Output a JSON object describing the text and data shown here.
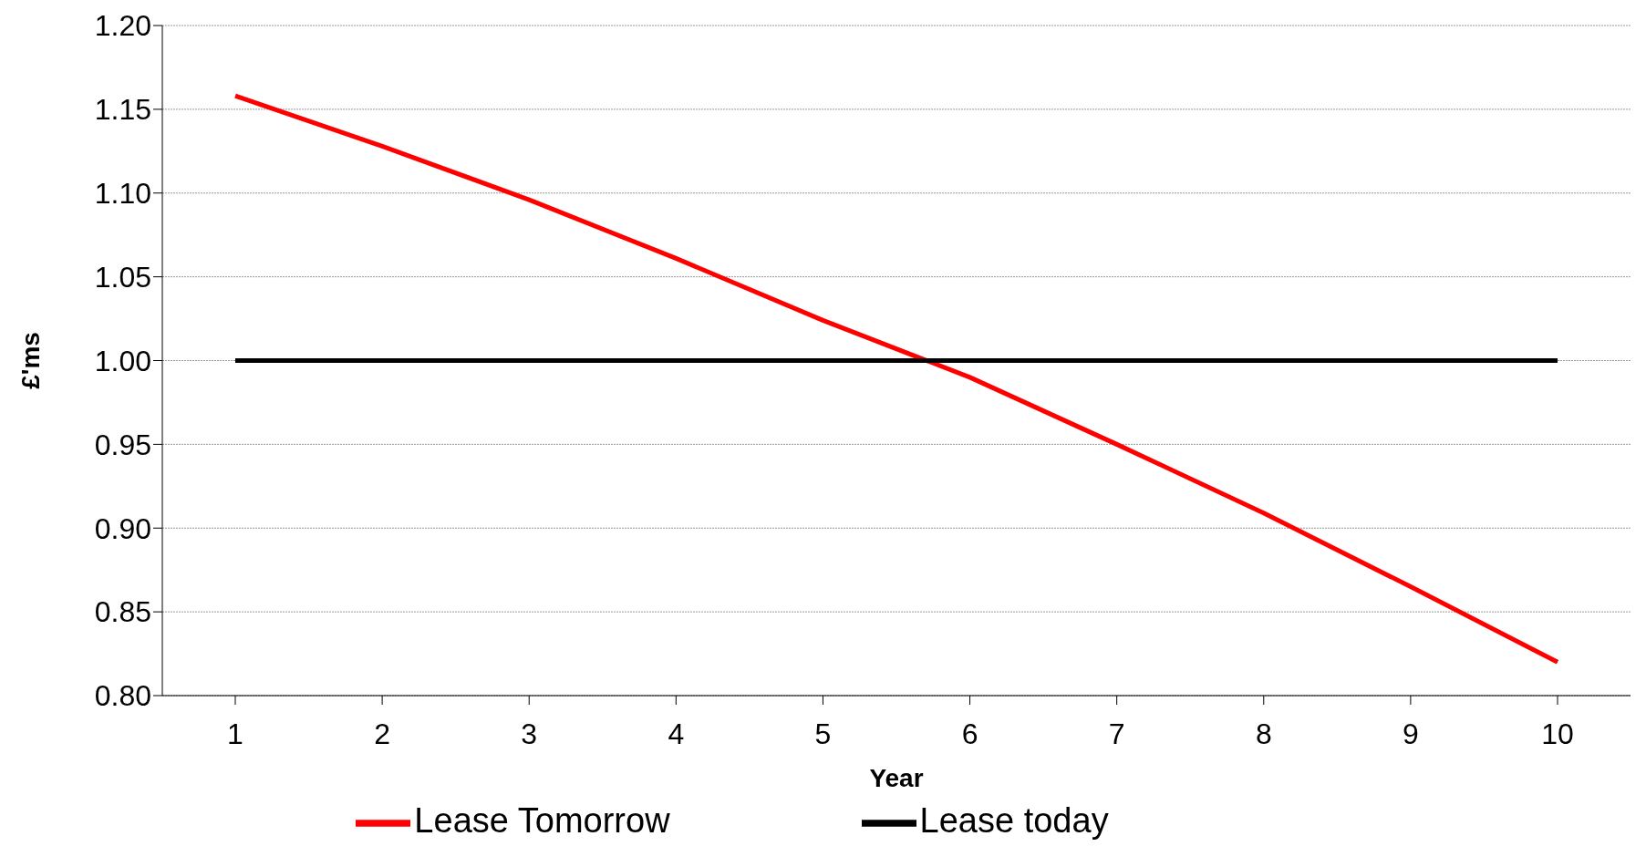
{
  "chart_data": {
    "type": "line",
    "xlabel": "Year",
    "ylabel": "£'ms",
    "categories": [
      "1",
      "2",
      "3",
      "4",
      "5",
      "6",
      "7",
      "8",
      "9",
      "10"
    ],
    "series": [
      {
        "name": "Lease Tomorrow",
        "color": "#ff0000",
        "values": [
          1.158,
          1.128,
          1.096,
          1.061,
          1.024,
          0.99,
          0.95,
          0.909,
          0.865,
          0.82
        ]
      },
      {
        "name": "Lease today",
        "color": "#000000",
        "values": [
          1,
          1,
          1,
          1,
          1,
          1,
          1,
          1,
          1,
          1
        ]
      }
    ],
    "ylim": [
      0.8,
      1.2
    ],
    "yticks": [
      {
        "value": 0.8,
        "label": "0.80"
      },
      {
        "value": 0.85,
        "label": "0.85"
      },
      {
        "value": 0.9,
        "label": "0.90"
      },
      {
        "value": 0.95,
        "label": "0.95"
      },
      {
        "value": 1.0,
        "label": "1.00"
      },
      {
        "value": 1.05,
        "label": "1.05"
      },
      {
        "value": 1.1,
        "label": "1.10"
      },
      {
        "value": 1.15,
        "label": "1.15"
      },
      {
        "value": 1.2,
        "label": "1.20"
      }
    ],
    "grid": "y",
    "legend": "bottom",
    "marker": "none",
    "line_style": "solid"
  }
}
